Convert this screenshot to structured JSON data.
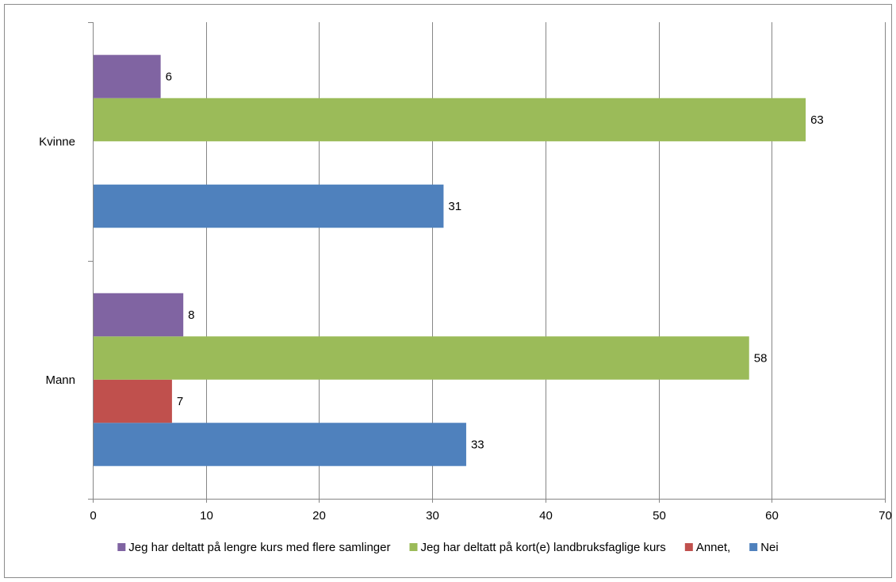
{
  "chart_data": {
    "type": "bar",
    "orientation": "horizontal",
    "categories": [
      "Mann",
      "Kvinne"
    ],
    "series": [
      {
        "name": "Nei",
        "color": "#4f81bd",
        "values": [
          33,
          31
        ]
      },
      {
        "name": "Annet,",
        "color": "#c0504d",
        "values": [
          7,
          null
        ]
      },
      {
        "name": "Jeg har deltatt på kort(e) landbruksfaglige kurs",
        "color": "#9bbb59",
        "values": [
          58,
          63
        ]
      },
      {
        "name": "Jeg har deltatt på lengre kurs med flere samlinger",
        "color": "#8064a2",
        "values": [
          8,
          6
        ]
      }
    ],
    "data_labels": [
      [
        "33",
        "31"
      ],
      [
        "7",
        ""
      ],
      [
        "58",
        "63"
      ],
      [
        "8",
        "6"
      ]
    ],
    "xlim": [
      0,
      70
    ],
    "x_ticks": [
      0,
      10,
      20,
      30,
      40,
      50,
      60,
      70
    ],
    "grid": "vertical",
    "legend": {
      "position": "bottom",
      "order": [
        "Jeg har deltatt på lengre kurs med flere samlinger",
        "Jeg har deltatt på kort(e) landbruksfaglige kurs",
        "Annet,",
        "Nei"
      ]
    },
    "title": "",
    "xlabel": "",
    "ylabel": ""
  }
}
